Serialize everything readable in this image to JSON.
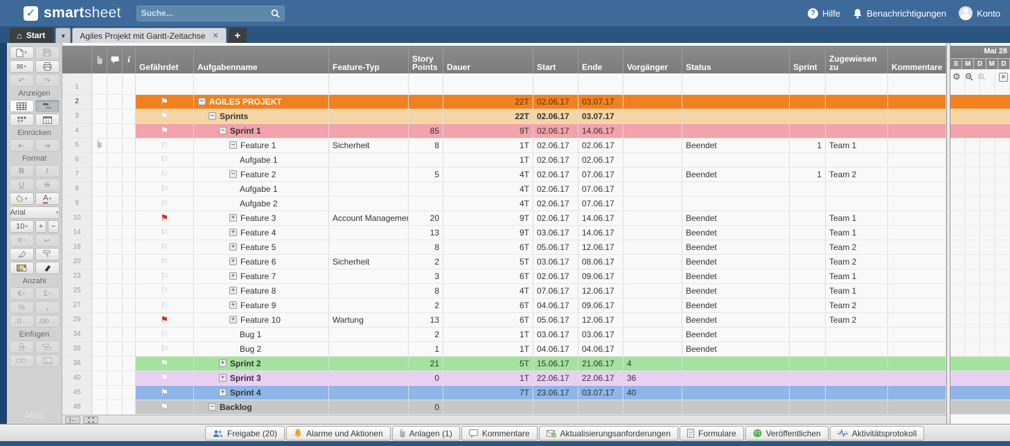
{
  "topbar": {
    "logo_part1": "smart",
    "logo_part2": "sheet",
    "search_placeholder": "Suche...",
    "help": "Hilfe",
    "notifications": "Benachrichtigungen",
    "account": "Konto"
  },
  "tabbar": {
    "home_tab": "Start",
    "sheet_tab": "Agiles Projekt mit Gantt-Zeitachse",
    "close_glyph": "✕",
    "plus_glyph": "+"
  },
  "toolbar": {
    "labels": {
      "anzeigen": "Anzeigen",
      "einruecken": "Einrücken",
      "format": "Format",
      "anzahl": "Anzahl",
      "einfuegen": "Einfügen"
    },
    "font_name": "Arial",
    "font_size": "10",
    "text_buttons": {
      "bold": "B",
      "italic": "I",
      "underline": "U",
      "strike": "S",
      "euro": "€",
      "sum": "Σ",
      "percent": "%",
      "comma": ",",
      "dec_less": ".0",
      "dec_more": ".00",
      "plus": "+",
      "minus": "−",
      "undo": "↶",
      "redo": "↷",
      "outdent": "⇤",
      "indent": "⇥",
      "align": "≡",
      "wrap": "↩",
      "fontcolor": "A"
    },
    "icon_names": [
      "new-document-icon",
      "save-icon",
      "email-icon",
      "print-icon",
      "undo-icon",
      "redo-icon",
      "grid-view-icon",
      "gantt-view-icon",
      "card-view-icon",
      "calendar-view-icon",
      "outdent-icon",
      "indent-icon",
      "fill-color-icon",
      "font-color-icon",
      "align-icon",
      "wrap-text-icon",
      "eraser-icon",
      "format-painter-icon",
      "cell-colors-icon",
      "highlight-icon",
      "currency-icon",
      "sum-icon",
      "percent-icon",
      "comma-icon",
      "decimal-decrease-icon",
      "decimal-increase-icon",
      "insert-cells-icon",
      "insert-row-icon",
      "link-icon",
      "image-icon"
    ],
    "watermark": "blog"
  },
  "grid": {
    "headers": {
      "gefaehrdet": "Gefährdet",
      "aufgabenname": "Aufgabenname",
      "feature_typ": "Feature-Typ",
      "story_points": "Story Points",
      "dauer": "Dauer",
      "start": "Start",
      "ende": "Ende",
      "vorgaenger": "Vorgänger",
      "status": "Status",
      "sprint": "Sprint",
      "zugewiesen_zu": "Zugewiesen zu",
      "kommentare": "Kommentare"
    },
    "header_icons": [
      "attachment-icon",
      "comment-icon",
      "info-icon"
    ],
    "rows": [
      {
        "n": "1"
      },
      {
        "n": "2",
        "f": "white",
        "c": "minus",
        "l": 0,
        "name": "AGILES PROJEKT",
        "b": 1,
        "du": "22T",
        "st": "02.06.17",
        "en": "03.07.17",
        "col": "orange"
      },
      {
        "n": "3",
        "f": "white",
        "c": "minus",
        "l": 1,
        "name": "Sprints",
        "b": 1,
        "du": "22T",
        "st": "02.06.17",
        "en": "03.07.17",
        "col": "tan",
        "vb": 1
      },
      {
        "n": "4",
        "f": "white",
        "c": "minus",
        "l": 2,
        "name": "Sprint 1",
        "b": 1,
        "sp": "85",
        "du": "9T",
        "st": "02.06.17",
        "en": "14.06.17",
        "col": "pink"
      },
      {
        "n": "5",
        "f": "outline",
        "a": 1,
        "c": "minus",
        "l": 3,
        "name": "Feature 1",
        "ft": "Sicherheit",
        "sp": "8",
        "du": "1T",
        "st": "02.06.17",
        "en": "02.06.17",
        "stat": "Beendet",
        "spr": "1",
        "zu": "Team 1"
      },
      {
        "n": "6",
        "f": "outline",
        "l": 4,
        "name": "Aufgabe 1",
        "du": "1T",
        "st": "02.06.17",
        "en": "02.06.17"
      },
      {
        "n": "7",
        "f": "outline",
        "c": "minus",
        "l": 3,
        "name": "Feature 2",
        "sp": "5",
        "du": "4T",
        "st": "02.06.17",
        "en": "07.06.17",
        "stat": "Beendet",
        "spr": "1",
        "zu": "Team 2"
      },
      {
        "n": "8",
        "f": "outline",
        "l": 4,
        "name": "Aufgabe 1",
        "du": "4T",
        "st": "02.06.17",
        "en": "07.06.17"
      },
      {
        "n": "9",
        "f": "outline",
        "l": 4,
        "name": "Aufgabe 2",
        "du": "4T",
        "st": "02.06.17",
        "en": "07.06.17"
      },
      {
        "n": "10",
        "f": "red",
        "c": "plus",
        "l": 3,
        "name": "Feature 3",
        "ft": "Account Management",
        "sp": "20",
        "du": "9T",
        "st": "02.06.17",
        "en": "14.06.17",
        "stat": "Beendet",
        "zu": "Team 1"
      },
      {
        "n": "14",
        "f": "outline",
        "c": "plus",
        "l": 3,
        "name": "Feature 4",
        "sp": "13",
        "du": "9T",
        "st": "03.06.17",
        "en": "14.06.17",
        "stat": "Beendet",
        "zu": "Team 1"
      },
      {
        "n": "18",
        "f": "outline",
        "c": "plus",
        "l": 3,
        "name": "Feature 5",
        "sp": "8",
        "du": "6T",
        "st": "05.06.17",
        "en": "12.06.17",
        "stat": "Beendet",
        "zu": "Team 2"
      },
      {
        "n": "20",
        "f": "outline",
        "c": "plus",
        "l": 3,
        "name": "Feature 6",
        "ft": "Sicherheit",
        "sp": "2",
        "du": "5T",
        "st": "03.06.17",
        "en": "08.06.17",
        "stat": "Beendet",
        "zu": "Team 2"
      },
      {
        "n": "23",
        "f": "outline",
        "c": "plus",
        "l": 3,
        "name": "Feature 7",
        "sp": "3",
        "du": "6T",
        "st": "02.06.17",
        "en": "09.06.17",
        "stat": "Beendet",
        "zu": "Team 1"
      },
      {
        "n": "25",
        "f": "outline",
        "c": "plus",
        "l": 3,
        "name": "Feature 8",
        "sp": "8",
        "du": "4T",
        "st": "07.06.17",
        "en": "12.06.17",
        "stat": "Beendet",
        "zu": "Team 1"
      },
      {
        "n": "27",
        "f": "outline",
        "c": "plus",
        "l": 3,
        "name": "Feature 9",
        "sp": "2",
        "du": "6T",
        "st": "04.06.17",
        "en": "09.06.17",
        "stat": "Beendet",
        "zu": "Team 2"
      },
      {
        "n": "29",
        "f": "red",
        "c": "plus",
        "l": 3,
        "name": "Feature 10",
        "ft": "Wartung",
        "sp": "13",
        "du": "6T",
        "st": "05.06.17",
        "en": "12.06.17",
        "stat": "Beendet",
        "zu": "Team 2"
      },
      {
        "n": "34",
        "f": "outline",
        "l": 4,
        "name": "Bug 1",
        "sp": "2",
        "du": "1T",
        "st": "03.06.17",
        "en": "03.06.17",
        "stat": "Beendet"
      },
      {
        "n": "35",
        "f": "outline",
        "l": 4,
        "name": "Bug 2",
        "sp": "1",
        "du": "1T",
        "st": "04.06.17",
        "en": "04.06.17",
        "stat": "Beendet"
      },
      {
        "n": "36",
        "f": "white",
        "c": "plus",
        "l": 2,
        "name": "Sprint 2",
        "b": 1,
        "sp": "21",
        "du": "5T",
        "st": "15.06.17",
        "en": "21.06.17",
        "vg": "4",
        "col": "green"
      },
      {
        "n": "40",
        "f": "white",
        "c": "plus",
        "l": 2,
        "name": "Sprint 3",
        "b": 1,
        "sp": "0",
        "du": "1T",
        "st": "22.06.17",
        "en": "22.06.17",
        "vg": "36",
        "col": "purple"
      },
      {
        "n": "45",
        "f": "white",
        "c": "plus",
        "l": 2,
        "name": "Sprint 4",
        "b": 1,
        "du": "7T",
        "st": "23.06.17",
        "en": "03.07.17",
        "vg": "40",
        "col": "blue"
      },
      {
        "n": "48",
        "f": "white",
        "c": "minus",
        "l": 1,
        "name": "Backlog",
        "b": 1,
        "sp": "0",
        "col": "gray"
      }
    ]
  },
  "gantt": {
    "month": "Mai 28",
    "days": [
      "S",
      "M",
      "D",
      "M",
      "D"
    ],
    "tool_icons": [
      "gear-icon",
      "zoom-out-icon",
      "zoom-in-icon",
      "close-panel-icon"
    ]
  },
  "footer": {
    "buttons": [
      {
        "label": "Freigabe (20)",
        "icon": "people"
      },
      {
        "label": "Alarme und Aktionen",
        "icon": "bell"
      },
      {
        "label": "Anlagen (1)",
        "icon": "clip"
      },
      {
        "label": "Kommentare",
        "icon": "comment"
      },
      {
        "label": "Aktualisierungsanforderungen",
        "icon": "update"
      },
      {
        "label": "Formulare",
        "icon": "form"
      },
      {
        "label": "Veröffentlichen",
        "icon": "globe"
      },
      {
        "label": "Aktivitätsprotokoll",
        "icon": "activity"
      }
    ]
  },
  "colors": {
    "rows": {
      "orange": "#F0811E",
      "tan": "#F6D5A5",
      "pink": "#F2A3AB",
      "green": "#A4E39E",
      "purple": "#E9CFF2",
      "blue": "#8EB6E8",
      "gray": "#C7C7C7"
    },
    "topbar_blue": "#3D6A99",
    "flag_red": "#D6321F"
  }
}
